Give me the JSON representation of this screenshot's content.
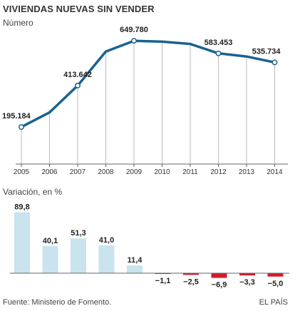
{
  "title": "VIVIENDAS NUEVAS SIN VENDER",
  "source": "Fuente: Ministerio de Fomento.",
  "credit": "EL PAÍS",
  "colors": {
    "line": "#19628f",
    "bar_positive": "#c9e3ef",
    "bar_negative": "#d21d2b",
    "grid": "#bbbbbb",
    "axis": "#666666"
  },
  "chart_data": [
    {
      "type": "line",
      "ylabel": "Número",
      "x": [
        "2005",
        "2006",
        "2007",
        "2008",
        "2009",
        "2010",
        "2011",
        "2012",
        "2013",
        "2014"
      ],
      "values": [
        195184,
        272000,
        413642,
        593000,
        649780,
        645000,
        633000,
        583453,
        567000,
        535734
      ],
      "data_labels": [
        {
          "index": 0,
          "text": "195.184"
        },
        {
          "index": 2,
          "text": "413.642"
        },
        {
          "index": 4,
          "text": "649.780"
        },
        {
          "index": 7,
          "text": "583.453"
        },
        {
          "index": 9,
          "text": "535.734"
        }
      ],
      "marked_points": [
        0,
        2,
        4,
        7,
        9
      ],
      "ylim": [
        0,
        700000
      ],
      "grid": "vertical"
    },
    {
      "type": "bar",
      "ylabel": "Variación, en %",
      "categories": [
        "2005",
        "2006",
        "2007",
        "2008",
        "2009",
        "2010",
        "2011",
        "2012",
        "2013",
        "2014"
      ],
      "values": [
        89.8,
        40.1,
        51.3,
        41.0,
        11.4,
        -1.1,
        -2.5,
        -6.9,
        -3.3,
        -5.0
      ],
      "value_labels": [
        "89,8",
        "40,1",
        "51,3",
        "41,0",
        "11,4",
        "−1,1",
        "−2,5",
        "−6,9",
        "−3,3",
        "−5,0"
      ],
      "ylim": [
        -10,
        95
      ]
    }
  ]
}
